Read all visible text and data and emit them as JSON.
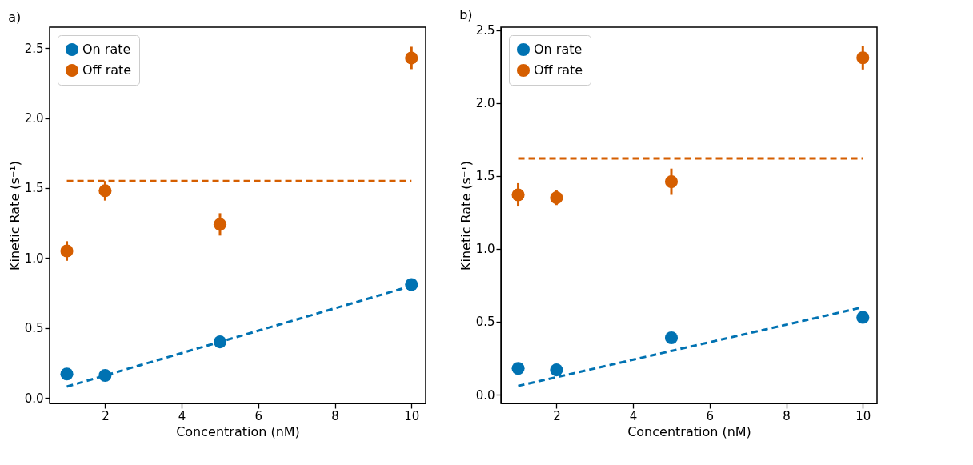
{
  "chart_data": [
    {
      "type": "scatter",
      "title": "a)",
      "xlabel": "Concentration (nM)",
      "ylabel": "Kinetic Rate (s⁻¹)",
      "xlim": [
        0.55,
        10.37
      ],
      "ylim": [
        -0.04,
        2.65
      ],
      "xticks": [
        2,
        4,
        6,
        8,
        10
      ],
      "yticks": [
        {
          "value": 0,
          "label": "0.0"
        },
        {
          "value": 0.5,
          "label": "0.5"
        },
        {
          "value": 1,
          "label": "1.0"
        },
        {
          "value": 1.5,
          "label": "1.5"
        },
        {
          "value": 2,
          "label": "2.0"
        },
        {
          "value": 2.5,
          "label": "2.5"
        }
      ],
      "grid": false,
      "legend": "top left",
      "series": [
        {
          "type": "line",
          "color": "#0072b2",
          "x": [
            1,
            10
          ],
          "values": [
            0.08,
            0.8
          ],
          "line_style": "dashed"
        },
        {
          "type": "line",
          "color": "#d55e00",
          "x": [
            1,
            10
          ],
          "values": [
            1.55,
            1.55
          ],
          "line_style": "dashed"
        },
        {
          "name": "On rate",
          "color": "#0072b2",
          "marker": "circle",
          "x": [
            1,
            2,
            5,
            10
          ],
          "values": [
            0.17,
            0.16,
            0.4,
            0.81
          ]
        },
        {
          "name": "Off rate",
          "color": "#d55e00",
          "marker": "circle",
          "x": [
            1,
            2,
            5,
            10
          ],
          "values": [
            1.05,
            1.48,
            1.24,
            2.43
          ],
          "errors": [
            0.07,
            0.07,
            0.08,
            0.08
          ]
        }
      ]
    },
    {
      "type": "scatter",
      "title": "b)",
      "xlabel": "Concentration (nM)",
      "ylabel": "Kinetic Rate (s⁻¹)",
      "xlim": [
        0.55,
        10.37
      ],
      "ylim": [
        -0.06,
        2.52
      ],
      "xticks": [
        2,
        4,
        6,
        8,
        10
      ],
      "yticks": [
        {
          "value": 0,
          "label": "0.0"
        },
        {
          "value": 0.5,
          "label": "0.5"
        },
        {
          "value": 1,
          "label": "1.0"
        },
        {
          "value": 1.5,
          "label": "1.5"
        },
        {
          "value": 2,
          "label": "2.0"
        },
        {
          "value": 2.5,
          "label": "2.5"
        }
      ],
      "grid": false,
      "legend": "top left",
      "series": [
        {
          "type": "line",
          "color": "#0072b2",
          "x": [
            1,
            10
          ],
          "values": [
            0.06,
            0.6
          ],
          "line_style": "dashed"
        },
        {
          "type": "line",
          "color": "#d55e00",
          "x": [
            1,
            10
          ],
          "values": [
            1.62,
            1.62
          ],
          "line_style": "dashed"
        },
        {
          "name": "On rate",
          "color": "#0072b2",
          "marker": "circle",
          "x": [
            1,
            2,
            5,
            10
          ],
          "values": [
            0.18,
            0.17,
            0.39,
            0.53
          ]
        },
        {
          "name": "Off rate",
          "color": "#d55e00",
          "marker": "circle",
          "x": [
            1,
            2,
            5,
            10
          ],
          "values": [
            1.37,
            1.35,
            1.46,
            2.31
          ],
          "errors": [
            0.08,
            0.05,
            0.09,
            0.08
          ]
        }
      ]
    }
  ]
}
